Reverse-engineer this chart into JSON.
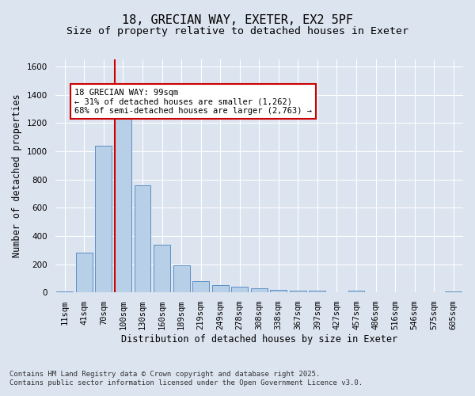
{
  "title_line1": "18, GRECIAN WAY, EXETER, EX2 5PF",
  "title_line2": "Size of property relative to detached houses in Exeter",
  "xlabel": "Distribution of detached houses by size in Exeter",
  "ylabel": "Number of detached properties",
  "categories": [
    "11sqm",
    "41sqm",
    "70sqm",
    "100sqm",
    "130sqm",
    "160sqm",
    "189sqm",
    "219sqm",
    "249sqm",
    "278sqm",
    "308sqm",
    "338sqm",
    "367sqm",
    "397sqm",
    "427sqm",
    "457sqm",
    "486sqm",
    "516sqm",
    "546sqm",
    "575sqm",
    "605sqm"
  ],
  "values": [
    8,
    280,
    1040,
    1265,
    760,
    335,
    190,
    80,
    50,
    38,
    28,
    18,
    10,
    10,
    0,
    10,
    0,
    0,
    0,
    0,
    8
  ],
  "bar_color": "#b8cfe8",
  "bar_edge_color": "#5b8ec4",
  "fig_bg_color": "#dce4f0",
  "plot_bg_color": "#dce4f0",
  "grid_color": "#ffffff",
  "vline_color": "#cc0000",
  "vline_x_index": 3,
  "annotation_text_line1": "18 GRECIAN WAY: 99sqm",
  "annotation_text_line2": "← 31% of detached houses are smaller (1,262)",
  "annotation_text_line3": "68% of semi-detached houses are larger (2,763) →",
  "annotation_box_color": "#cc0000",
  "ylim": [
    0,
    1650
  ],
  "yticks": [
    0,
    200,
    400,
    600,
    800,
    1000,
    1200,
    1400,
    1600
  ],
  "footnote1": "Contains HM Land Registry data © Crown copyright and database right 2025.",
  "footnote2": "Contains public sector information licensed under the Open Government Licence v3.0.",
  "title_fontsize": 11,
  "subtitle_fontsize": 9.5,
  "axis_label_fontsize": 8.5,
  "tick_fontsize": 7.5,
  "annotation_fontsize": 7.5,
  "footnote_fontsize": 6.5
}
